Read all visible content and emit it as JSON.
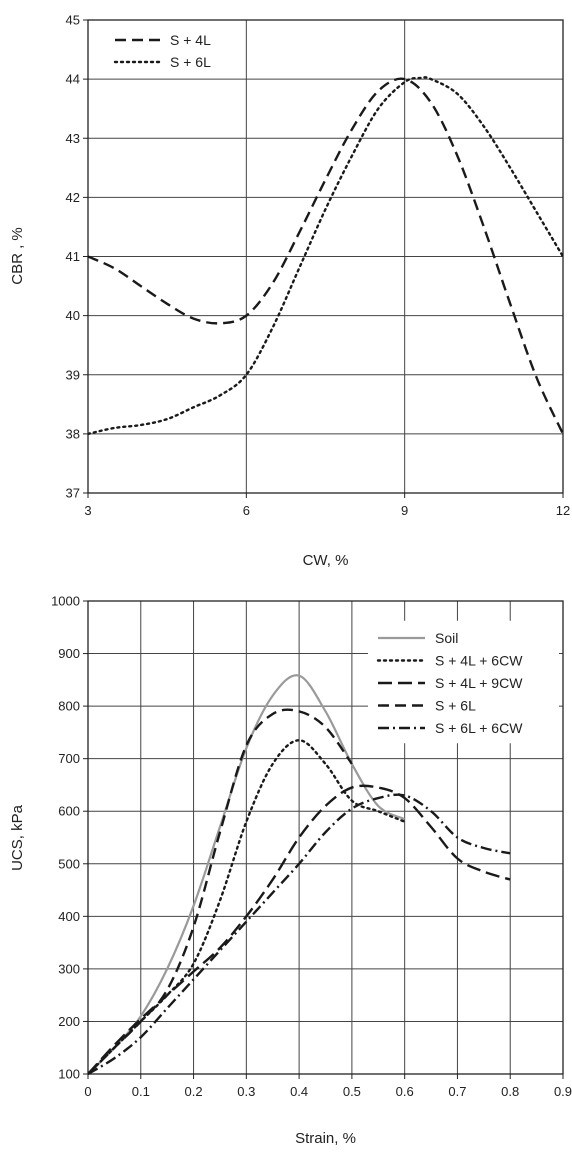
{
  "chart_data": [
    {
      "type": "line",
      "title": "",
      "xlabel": "CW, %",
      "ylabel": "CBR , %",
      "xlim": [
        3,
        12
      ],
      "ylim": [
        37,
        45
      ],
      "xticks": [
        3,
        6,
        9,
        12
      ],
      "yticks": [
        37,
        38,
        39,
        40,
        41,
        42,
        43,
        44,
        45
      ],
      "grid": true,
      "legend": "top-left",
      "series": [
        {
          "name": "S + 4L",
          "style": "dashed",
          "color": "#1a1a1a",
          "points": [
            [
              3,
              41.0
            ],
            [
              3.5,
              40.8
            ],
            [
              4.0,
              40.5
            ],
            [
              4.5,
              40.2
            ],
            [
              5.0,
              39.95
            ],
            [
              5.5,
              39.87
            ],
            [
              6.0,
              40.0
            ],
            [
              6.5,
              40.55
            ],
            [
              7.0,
              41.4
            ],
            [
              7.5,
              42.3
            ],
            [
              8.0,
              43.15
            ],
            [
              8.5,
              43.8
            ],
            [
              9.0,
              44.0
            ],
            [
              9.5,
              43.6
            ],
            [
              10.0,
              42.7
            ],
            [
              10.5,
              41.5
            ],
            [
              11.0,
              40.2
            ],
            [
              11.5,
              38.95
            ],
            [
              12.0,
              38.0
            ]
          ]
        },
        {
          "name": "S + 6L",
          "style": "dotted",
          "color": "#1a1a1a",
          "points": [
            [
              3,
              38.0
            ],
            [
              3.5,
              38.1
            ],
            [
              4.0,
              38.15
            ],
            [
              4.5,
              38.25
            ],
            [
              5.0,
              38.45
            ],
            [
              5.5,
              38.65
            ],
            [
              6.0,
              39.0
            ],
            [
              6.5,
              39.8
            ],
            [
              7.0,
              40.8
            ],
            [
              7.5,
              41.8
            ],
            [
              8.0,
              42.7
            ],
            [
              8.5,
              43.5
            ],
            [
              9.0,
              43.95
            ],
            [
              9.3,
              44.02
            ],
            [
              9.5,
              44.0
            ],
            [
              10.0,
              43.75
            ],
            [
              10.5,
              43.2
            ],
            [
              11.0,
              42.5
            ],
            [
              11.5,
              41.75
            ],
            [
              12.0,
              41.0
            ]
          ]
        }
      ]
    },
    {
      "type": "line",
      "title": "",
      "xlabel": "Strain, %",
      "ylabel": "UCS, kPa",
      "xlim": [
        0,
        0.9
      ],
      "ylim": [
        100,
        1000
      ],
      "xticks": [
        "0",
        "0.1",
        "0.2",
        "0.3",
        "0.4",
        "0.5",
        "0.6",
        "0.7",
        "0.8",
        "0.9"
      ],
      "yticks": [
        100,
        200,
        300,
        400,
        500,
        600,
        700,
        800,
        900,
        1000
      ],
      "grid": true,
      "legend": "top-right",
      "series": [
        {
          "name": "Soil",
          "style": "solid",
          "color": "#9a9a9a",
          "points": [
            [
              0,
              100
            ],
            [
              0.05,
              150
            ],
            [
              0.1,
              210
            ],
            [
              0.15,
              300
            ],
            [
              0.2,
              420
            ],
            [
              0.25,
              570
            ],
            [
              0.3,
              720
            ],
            [
              0.35,
              820
            ],
            [
              0.4,
              858
            ],
            [
              0.45,
              790
            ],
            [
              0.5,
              690
            ],
            [
              0.55,
              610
            ],
            [
              0.6,
              585
            ]
          ]
        },
        {
          "name": "S + 4L + 6CW",
          "style": "dotted",
          "color": "#1a1a1a",
          "points": [
            [
              0,
              100
            ],
            [
              0.05,
              150
            ],
            [
              0.1,
              200
            ],
            [
              0.15,
              250
            ],
            [
              0.2,
              310
            ],
            [
              0.25,
              430
            ],
            [
              0.3,
              580
            ],
            [
              0.35,
              690
            ],
            [
              0.4,
              735
            ],
            [
              0.45,
              690
            ],
            [
              0.5,
              620
            ],
            [
              0.55,
              600
            ],
            [
              0.6,
              580
            ]
          ]
        },
        {
          "name": "S + 4L + 9CW",
          "style": "longdash",
          "color": "#1a1a1a",
          "points": [
            [
              0,
              100
            ],
            [
              0.05,
              155
            ],
            [
              0.1,
              205
            ],
            [
              0.15,
              250
            ],
            [
              0.2,
              295
            ],
            [
              0.25,
              340
            ],
            [
              0.3,
              400
            ],
            [
              0.35,
              470
            ],
            [
              0.4,
              550
            ],
            [
              0.45,
              610
            ],
            [
              0.5,
              645
            ],
            [
              0.55,
              645
            ],
            [
              0.6,
              625
            ],
            [
              0.65,
              570
            ],
            [
              0.7,
              510
            ],
            [
              0.75,
              485
            ],
            [
              0.8,
              470
            ]
          ]
        },
        {
          "name": "S + 6L",
          "style": "dashed",
          "color": "#1a1a1a",
          "points": [
            [
              0,
              100
            ],
            [
              0.05,
              150
            ],
            [
              0.1,
              200
            ],
            [
              0.15,
              260
            ],
            [
              0.2,
              380
            ],
            [
              0.25,
              560
            ],
            [
              0.3,
              725
            ],
            [
              0.35,
              785
            ],
            [
              0.4,
              790
            ],
            [
              0.45,
              760
            ],
            [
              0.5,
              690
            ]
          ]
        },
        {
          "name": "S + 6L + 6CW",
          "style": "dashdot",
          "color": "#1a1a1a",
          "points": [
            [
              0,
              100
            ],
            [
              0.05,
              130
            ],
            [
              0.1,
              170
            ],
            [
              0.15,
              225
            ],
            [
              0.2,
              280
            ],
            [
              0.25,
              335
            ],
            [
              0.3,
              390
            ],
            [
              0.35,
              445
            ],
            [
              0.4,
              500
            ],
            [
              0.45,
              560
            ],
            [
              0.5,
              605
            ],
            [
              0.55,
              625
            ],
            [
              0.6,
              630
            ],
            [
              0.65,
              600
            ],
            [
              0.7,
              550
            ],
            [
              0.75,
              530
            ],
            [
              0.8,
              520
            ]
          ]
        }
      ]
    }
  ]
}
